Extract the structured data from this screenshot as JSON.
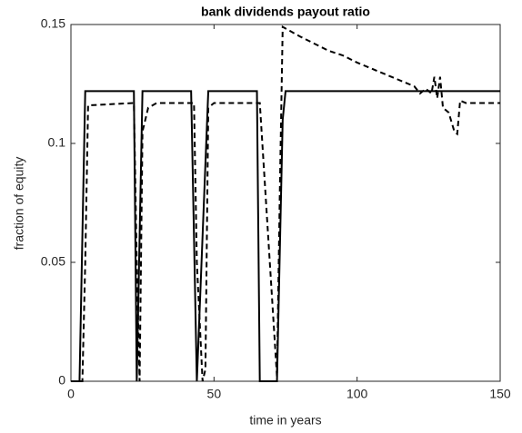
{
  "chart_data": {
    "type": "line",
    "title": "bank dividends payout ratio",
    "x_label": "time in years",
    "y_label": "fraction of equity",
    "xlim": [
      0,
      150
    ],
    "ylim": [
      0,
      0.15
    ],
    "xticks": [
      0,
      50,
      100,
      150
    ],
    "yticks": [
      0,
      0.05,
      0.1,
      0.15
    ],
    "grid": false,
    "series": [
      {
        "color": "#000000",
        "dash": "solid",
        "x": [
          0,
          3,
          5,
          22,
          23,
          25,
          42,
          44,
          48,
          65,
          66,
          72,
          74,
          75,
          150
        ],
        "values": [
          0,
          0,
          0.122,
          0.122,
          0,
          0.122,
          0.122,
          0,
          0.122,
          0.122,
          0,
          0,
          0.11,
          0.122,
          0.122
        ]
      },
      {
        "color": "#000000",
        "dash": "dashed",
        "x": [
          0,
          4,
          5,
          6,
          22,
          23,
          24,
          25,
          27,
          30,
          43,
          44,
          46,
          47,
          48,
          50,
          66,
          72,
          73,
          74,
          80,
          85,
          90,
          95,
          100,
          110,
          120,
          122,
          124,
          126,
          127,
          128,
          129,
          130,
          132,
          134,
          135,
          136,
          138,
          150
        ],
        "values": [
          0,
          0,
          0.05,
          0.116,
          0.117,
          0.05,
          0,
          0.105,
          0.115,
          0.117,
          0.117,
          0.05,
          0,
          0.005,
          0.115,
          0.117,
          0.117,
          0.002,
          0.08,
          0.149,
          0.145,
          0.142,
          0.139,
          0.137,
          0.134,
          0.129,
          0.124,
          0.121,
          0.123,
          0.121,
          0.128,
          0.119,
          0.128,
          0.115,
          0.113,
          0.105,
          0.104,
          0.118,
          0.117,
          0.117
        ]
      }
    ]
  }
}
